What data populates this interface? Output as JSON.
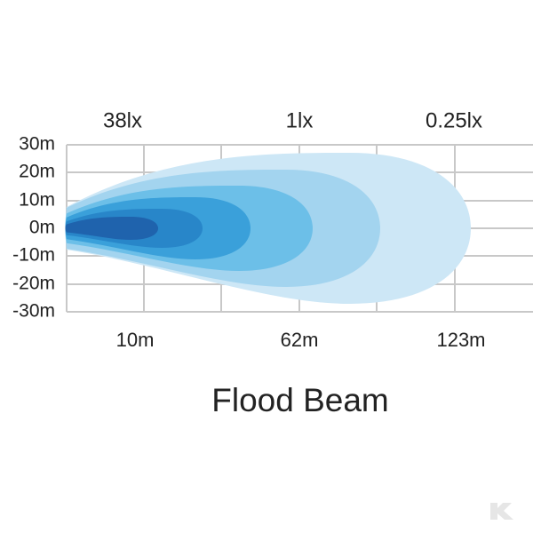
{
  "title": "Flood Beam",
  "lux_labels": [
    "38lx",
    "1lx",
    "0.25lx"
  ],
  "y_labels": [
    "30m",
    "20m",
    "10m",
    "0m",
    "-10m",
    "-20m",
    "-30m"
  ],
  "distance_labels": [
    "10m",
    "62m",
    "123m"
  ]
}
